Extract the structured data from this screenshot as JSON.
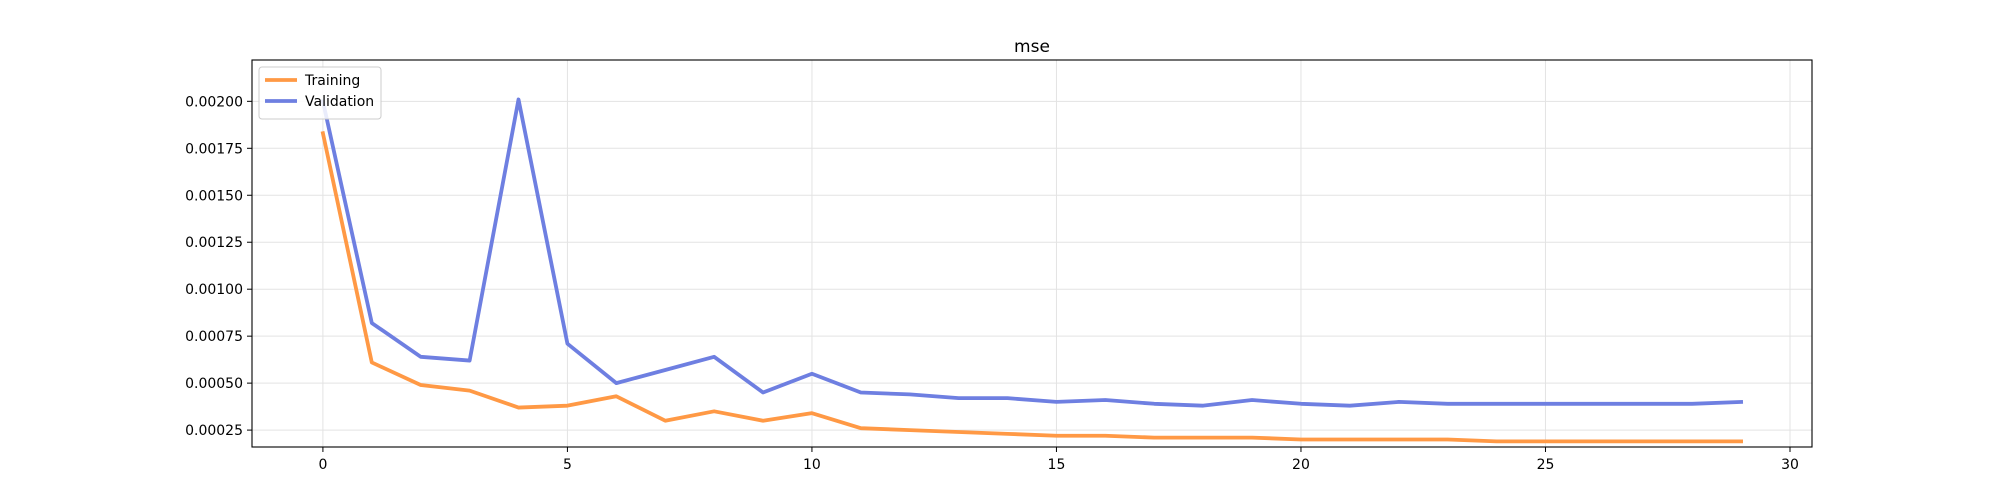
{
  "chart_data": {
    "type": "line",
    "title": "mse",
    "xlabel": "",
    "ylabel": "",
    "xlim": [
      -1.45,
      30.45
    ],
    "ylim": [
      0.00016,
      0.00222
    ],
    "xticks": [
      0,
      5,
      10,
      15,
      20,
      25,
      30
    ],
    "yticks": [
      0.00025,
      0.0005,
      0.00075,
      0.001,
      0.00125,
      0.0015,
      0.00175,
      0.002
    ],
    "ytick_labels": [
      "0.00025",
      "0.00050",
      "0.00075",
      "0.00100",
      "0.00125",
      "0.00150",
      "0.00175",
      "0.00200"
    ],
    "grid": true,
    "legend_position": "top-left",
    "x": [
      0,
      1,
      2,
      3,
      4,
      5,
      6,
      7,
      8,
      9,
      10,
      11,
      12,
      13,
      14,
      15,
      16,
      17,
      18,
      19,
      20,
      21,
      22,
      23,
      24,
      25,
      26,
      27,
      28,
      29
    ],
    "series": [
      {
        "name": "Training",
        "color": "#ff9945",
        "values": [
          0.00183,
          0.00061,
          0.00049,
          0.00046,
          0.00037,
          0.00038,
          0.00043,
          0.0003,
          0.00035,
          0.0003,
          0.00034,
          0.00026,
          0.00025,
          0.00024,
          0.00023,
          0.00022,
          0.00022,
          0.00021,
          0.00021,
          0.00021,
          0.0002,
          0.0002,
          0.0002,
          0.0002,
          0.00019,
          0.00019,
          0.00019,
          0.00019,
          0.00019,
          0.00019
        ]
      },
      {
        "name": "Validation",
        "color": "#6e7fe1",
        "values": [
          0.002,
          0.00082,
          0.00064,
          0.00062,
          0.00201,
          0.00071,
          0.0005,
          0.00057,
          0.00064,
          0.00045,
          0.00055,
          0.00045,
          0.00044,
          0.00042,
          0.00042,
          0.0004,
          0.00041,
          0.00039,
          0.00038,
          0.00041,
          0.00039,
          0.00038,
          0.0004,
          0.00039,
          0.00039,
          0.00039,
          0.00039,
          0.00039,
          0.00039,
          0.0004
        ]
      }
    ]
  }
}
